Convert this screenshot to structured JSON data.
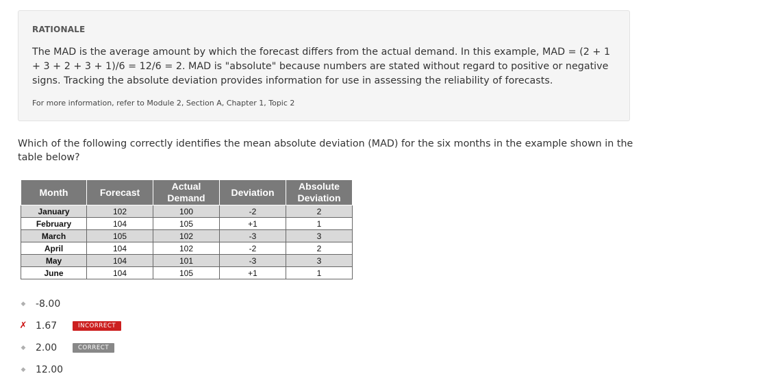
{
  "rationale": {
    "title": "RATIONALE",
    "body": "The MAD is the average amount by which the forecast differs from the actual demand. In this example, MAD = (2 + 1 + 3 + 2 + 3 + 1)/6 = 12/6 = 2. MAD is \"absolute\" because numbers are stated without regard to positive or negative signs. Tracking the absolute deviation provides information for use in assessing the reliability of forecasts.",
    "reference": "For more information, refer to Module 2, Section A, Chapter 1, Topic 2"
  },
  "question": "Which of the following correctly identifies the mean absolute deviation (MAD) for the six months in the example shown in the table below?",
  "table": {
    "headers": [
      "Month",
      "Forecast",
      "Actual Demand",
      "Deviation",
      "Absolute Deviation"
    ],
    "rows": [
      [
        "January",
        "102",
        "100",
        "-2",
        "2"
      ],
      [
        "February",
        "104",
        "105",
        "+1",
        "1"
      ],
      [
        "March",
        "105",
        "102",
        "-3",
        "3"
      ],
      [
        "April",
        "104",
        "102",
        "-2",
        "2"
      ],
      [
        "May",
        "104",
        "101",
        "-3",
        "3"
      ],
      [
        "June",
        "104",
        "105",
        "+1",
        "1"
      ]
    ]
  },
  "options": [
    {
      "value": "-8.00",
      "marker": "diamond-icon",
      "badge": ""
    },
    {
      "value": "1.67",
      "marker": "x-mark-icon",
      "badge": "INCORRECT"
    },
    {
      "value": "2.00",
      "marker": "diamond-icon",
      "badge": "CORRECT"
    },
    {
      "value": "12.00",
      "marker": "diamond-icon",
      "badge": ""
    }
  ],
  "colors": {
    "incorrect": "#cc1f1f",
    "correct": "#888888",
    "header_bg": "#7a7a7a",
    "row_shade": "#d9d9d9"
  }
}
